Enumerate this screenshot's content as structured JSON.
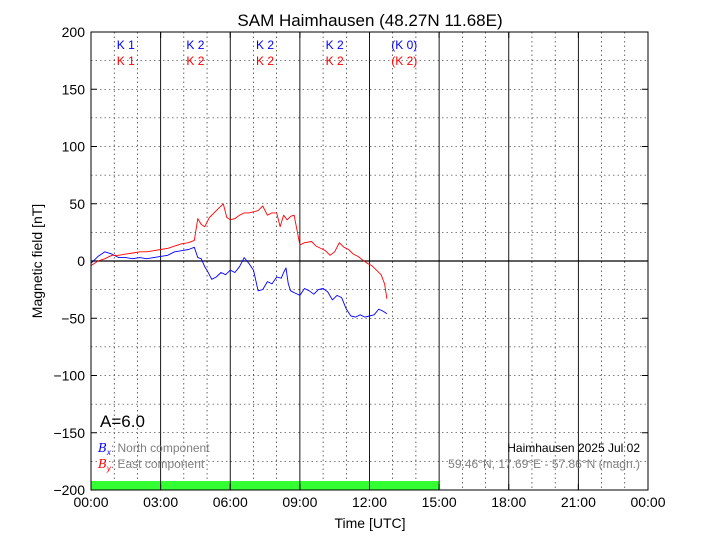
{
  "chart_data": {
    "type": "line",
    "title": "SAM Haimhausen (48.27N 11.68E)",
    "xlabel": "Time [UTC]",
    "ylabel": "Magnetic field [nT]",
    "xlim": [
      0,
      24
    ],
    "ylim": [
      -200,
      200
    ],
    "x_ticks": [
      0,
      3,
      6,
      9,
      12,
      15,
      18,
      21,
      24
    ],
    "x_tick_labels": [
      "00:00",
      "03:00",
      "06:00",
      "09:00",
      "12:00",
      "15:00",
      "18:00",
      "21:00",
      "00:00"
    ],
    "y_ticks": [
      200,
      150,
      100,
      50,
      0,
      -50,
      -100,
      -150,
      -200
    ],
    "y_tick_labels": [
      "200",
      "150",
      "100",
      "50",
      "0",
      "−50",
      "−100",
      "−150",
      "−200"
    ],
    "grid": true,
    "k_index_labels": [
      {
        "x": 1.5,
        "bx": "K 1",
        "by": "K 1"
      },
      {
        "x": 4.5,
        "bx": "K 2",
        "by": "K 2"
      },
      {
        "x": 7.5,
        "bx": "K 2",
        "by": "K 2"
      },
      {
        "x": 10.5,
        "bx": "K 2",
        "by": "K 2"
      },
      {
        "x": 13.5,
        "bx": "(K 0)",
        "by": "(K 2)"
      }
    ],
    "a_index": "A=6.0",
    "legend": {
      "placement": "bottom-left",
      "bx_symbol": "B",
      "bx_sub": "x",
      "bx_label": ": North component",
      "by_symbol": "B",
      "by_sub": "y",
      "by_label": ": East component"
    },
    "station_info": "Haimhausen 2025 Jul 02",
    "coord_info": "59.46°N, 17.69°E - 57.86°N (magn.)",
    "coverage_until": 15,
    "colors": {
      "bx": "#0000ff",
      "by": "#ff0000",
      "coverage": "#33ff33",
      "gray_text": "#7f7f7f"
    },
    "series": [
      {
        "name": "Bx",
        "color": "#0000ff",
        "x": [
          0,
          0.3,
          0.6,
          0.9,
          1.2,
          1.5,
          1.8,
          2.1,
          2.4,
          2.7,
          3.0,
          3.3,
          3.6,
          3.9,
          4.2,
          4.45,
          4.6,
          4.75,
          4.9,
          5.0,
          5.2,
          5.4,
          5.6,
          5.8,
          6.0,
          6.2,
          6.4,
          6.6,
          6.8,
          7.0,
          7.2,
          7.4,
          7.6,
          7.8,
          8.0,
          8.2,
          8.3,
          8.4,
          8.5,
          8.6,
          8.8,
          9.0,
          9.2,
          9.4,
          9.6,
          9.8,
          10.0,
          10.2,
          10.4,
          10.6,
          10.8,
          11.0,
          11.2,
          11.4,
          11.6,
          11.8,
          12.0,
          12.2,
          12.4,
          12.6,
          12.75
        ],
        "y": [
          -2,
          4,
          8,
          6,
          3,
          3,
          2,
          3,
          2,
          3,
          4,
          5,
          8,
          9,
          10,
          12,
          3,
          2,
          -5,
          -8,
          -16,
          -14,
          -10,
          -12,
          -8,
          -10,
          -5,
          3,
          -2,
          -8,
          -26,
          -25,
          -18,
          -20,
          -14,
          -15,
          -10,
          -6,
          -20,
          -26,
          -28,
          -30,
          -24,
          -26,
          -29,
          -25,
          -24,
          -27,
          -34,
          -30,
          -32,
          -42,
          -48,
          -49,
          -47,
          -49,
          -48,
          -47,
          -42,
          -44,
          -46
        ]
      },
      {
        "name": "By",
        "color": "#ff0000",
        "x": [
          0,
          0.3,
          0.6,
          0.9,
          1.2,
          1.5,
          1.8,
          2.1,
          2.4,
          2.7,
          3.0,
          3.3,
          3.6,
          3.9,
          4.2,
          4.45,
          4.6,
          4.75,
          4.9,
          5.1,
          5.3,
          5.5,
          5.7,
          5.85,
          6.0,
          6.2,
          6.4,
          6.6,
          6.8,
          7.0,
          7.2,
          7.4,
          7.6,
          7.8,
          8.0,
          8.15,
          8.3,
          8.45,
          8.6,
          8.75,
          9.0,
          9.2,
          9.5,
          9.7,
          9.9,
          10.1,
          10.3,
          10.5,
          10.7,
          10.9,
          11.1,
          11.3,
          11.5,
          11.7,
          11.9,
          12.1,
          12.3,
          12.5,
          12.65,
          12.75
        ],
        "y": [
          -4,
          0,
          2,
          5,
          5,
          6,
          7,
          8,
          8,
          9,
          10,
          11,
          13,
          15,
          16,
          18,
          37,
          32,
          30,
          38,
          42,
          46,
          50,
          38,
          36,
          37,
          40,
          42,
          42,
          43,
          44,
          48,
          40,
          42,
          42,
          30,
          40,
          36,
          39,
          40,
          14,
          16,
          17,
          13,
          11,
          9,
          5,
          8,
          16,
          12,
          10,
          6,
          4,
          1,
          -2,
          -4,
          -8,
          -12,
          -20,
          -33
        ]
      }
    ]
  }
}
